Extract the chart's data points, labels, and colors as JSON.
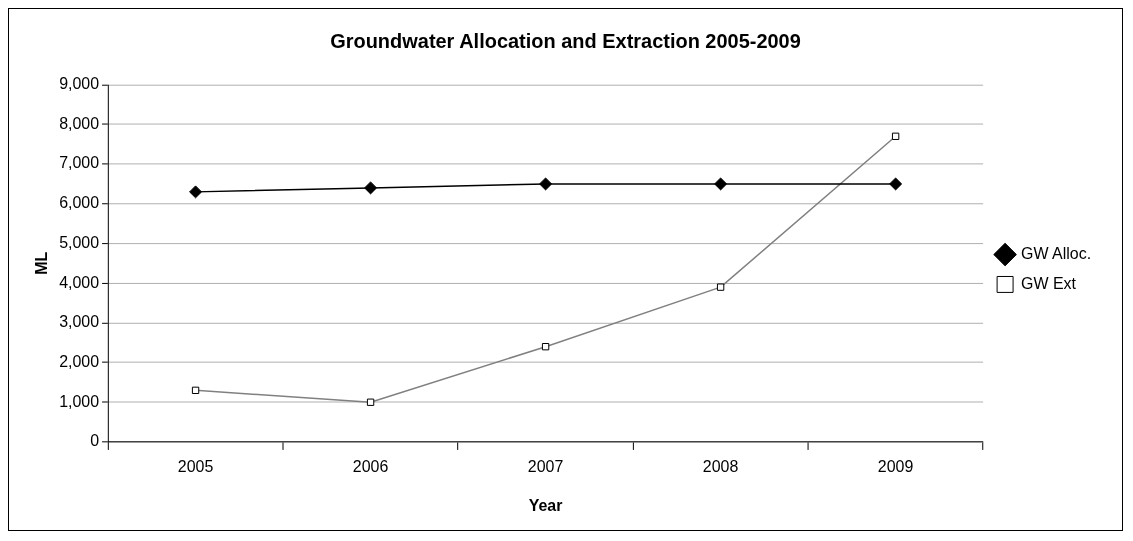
{
  "chart_data": {
    "type": "line",
    "title": "Groundwater Allocation and Extraction 2005-2009",
    "xlabel": "Year",
    "ylabel": "ML",
    "categories": [
      "2005",
      "2006",
      "2007",
      "2008",
      "2009"
    ],
    "series": [
      {
        "name": "GW Alloc.",
        "color": "#000000",
        "marker": "diamond",
        "values": [
          6300,
          6400,
          6500,
          6500,
          6500
        ]
      },
      {
        "name": "GW Ext",
        "color": "#808080",
        "marker": "square",
        "values": [
          1300,
          1000,
          2400,
          3900,
          7700
        ]
      }
    ],
    "ylim": [
      0,
      9000
    ],
    "yticks": [
      0,
      {
        "value": 1000,
        "label": "1,000"
      },
      {
        "value": 2000,
        "label": "2,000"
      },
      {
        "value": 3000,
        "label": "3,000"
      },
      {
        "value": 4000,
        "label": "4,000"
      },
      {
        "value": 5000,
        "label": "5,000"
      },
      {
        "value": 6000,
        "label": "6,000"
      },
      {
        "value": 7000,
        "label": "7,000"
      },
      {
        "value": 8000,
        "label": "8,000"
      },
      {
        "value": 9000,
        "label": "9,000"
      }
    ],
    "grid": "y",
    "legend": "right",
    "line_style": "solid"
  }
}
